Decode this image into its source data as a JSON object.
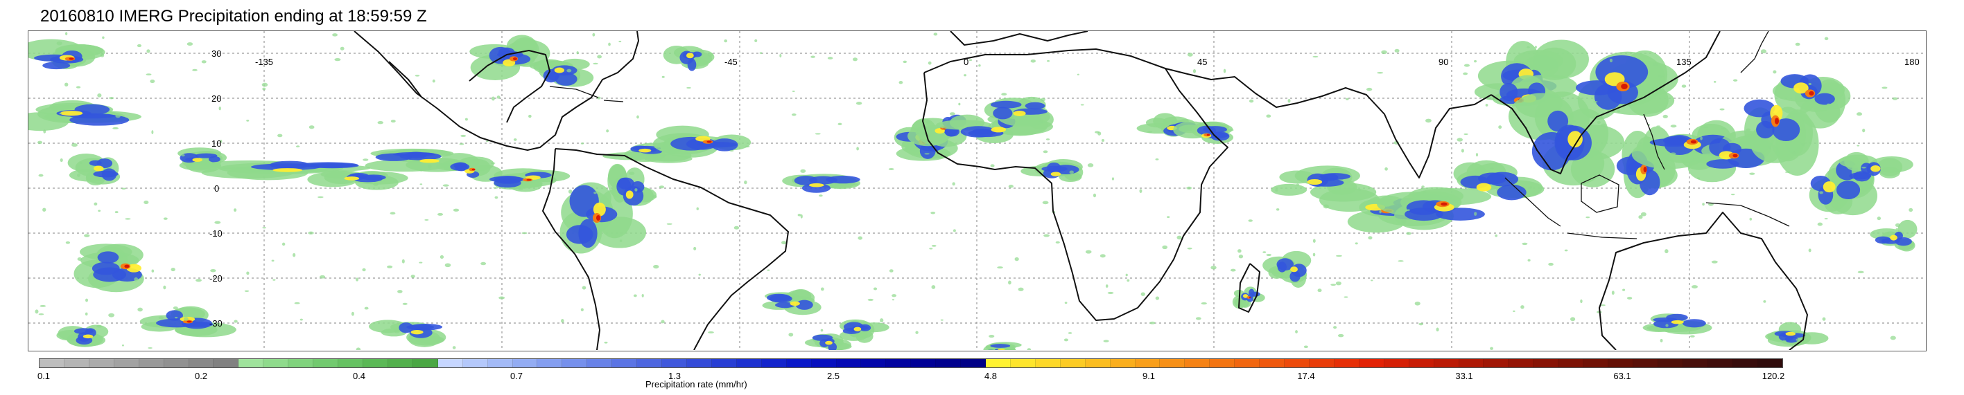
{
  "title": "20160810 IMERG Precipitation ending at 18:59:59 Z",
  "map": {
    "lat_labels": [
      "30",
      "20",
      "10",
      "0",
      "-10",
      "-20",
      "-30"
    ],
    "lon_labels": [
      "-135",
      "-45",
      "0",
      "45",
      "90",
      "135",
      "180"
    ]
  },
  "colorbar": {
    "label": "Precipitation rate (mm/hr)",
    "tick_labels": [
      "0.1",
      "0.2",
      "0.4",
      "0.7",
      "1.3",
      "2.5",
      "4.8",
      "9.1",
      "17.4",
      "33.1",
      "63.1",
      "120.2"
    ],
    "colors": [
      "#bdbdbd",
      "#b4b4b4",
      "#ababab",
      "#a2a2a2",
      "#999999",
      "#919191",
      "#898989",
      "#818181",
      "#9fe39c",
      "#8fdb8c",
      "#80d37d",
      "#72ca6f",
      "#66c262",
      "#5bb956",
      "#52b04c",
      "#4aa744",
      "#c6d6ff",
      "#b4c8fb",
      "#a3baf7",
      "#93acf3",
      "#849ef0",
      "#7690ec",
      "#6882e8",
      "#5b74e4",
      "#4d66e0",
      "#4058dc",
      "#344bd8",
      "#283ed4",
      "#1d31d0",
      "#1324cc",
      "#0a18c8",
      "#0710bf",
      "#050ab5",
      "#0306aa",
      "#0203a0",
      "#000096",
      "#00008e",
      "#000086",
      "#fff230",
      "#fee52c",
      "#fdd828",
      "#fccb24",
      "#fbbd20",
      "#faae1d",
      "#f99f1a",
      "#f79017",
      "#f58214",
      "#f37411",
      "#f1660f",
      "#ef580d",
      "#ec4a0b",
      "#e93c09",
      "#e62f07",
      "#e32205",
      "#d51f05",
      "#c81c05",
      "#bb1a05",
      "#ae1805",
      "#a11605",
      "#941405",
      "#881305",
      "#7c1205",
      "#701105",
      "#641005",
      "#5a1008",
      "#501009",
      "#480f0b",
      "#400e0c",
      "#380d0c",
      "#300c0c"
    ],
    "colors_main": {
      "light_green": "#8fd98c",
      "blue": "#3355dd",
      "yellow": "#ffee33",
      "orange": "#f57c14",
      "red": "#d61a05"
    }
  }
}
